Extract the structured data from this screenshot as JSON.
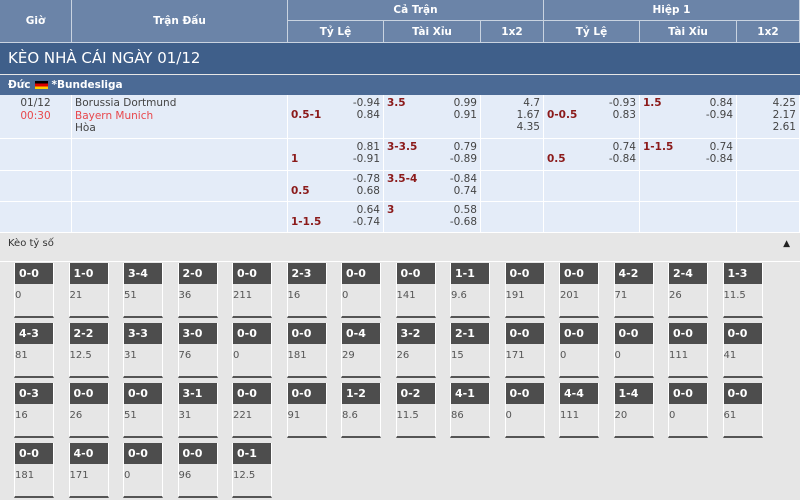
{
  "header": {
    "time": "Giờ",
    "match": "Trận Đấu",
    "full": "Cả Trận",
    "half": "Hiệp 1",
    "handicap": "Tỷ Lệ",
    "ou": "Tài Xỉu",
    "x12": "1x2"
  },
  "title": "KÈO NHÀ CÁI NGÀY 01/12",
  "league": {
    "country": "Đức",
    "name": "*Bundesliga"
  },
  "match": {
    "date": "01/12",
    "time": "00:30",
    "home": "Borussia Dortmund",
    "away": "Bayern Munich",
    "draw": "Hòa"
  },
  "rows": [
    {
      "hdp": "0.5-1",
      "hdp_o": [
        "-0.94",
        "0.84"
      ],
      "ou": "3.5",
      "ou_o": [
        "0.99",
        "0.91"
      ],
      "x12": [
        "4.7",
        "1.67",
        "4.35"
      ],
      "h_hdp": "0-0.5",
      "h_hdp_o": [
        "-0.93",
        "0.83"
      ],
      "h_ou": "1.5",
      "h_ou_o": [
        "0.84",
        "-0.94"
      ],
      "h_x12": [
        "4.25",
        "2.17",
        "2.61"
      ]
    },
    {
      "hdp": "1",
      "hdp_o": [
        "0.81",
        "-0.91"
      ],
      "ou": "3-3.5",
      "ou_o": [
        "0.79",
        "-0.89"
      ],
      "h_hdp": "0.5",
      "h_hdp_o": [
        "0.74",
        "-0.84"
      ],
      "h_ou": "1-1.5",
      "h_ou_o": [
        "0.74",
        "-0.84"
      ]
    },
    {
      "hdp": "0.5",
      "hdp_o": [
        "-0.78",
        "0.68"
      ],
      "ou": "3.5-4",
      "ou_o": [
        "-0.84",
        "0.74"
      ]
    },
    {
      "hdp": "1-1.5",
      "hdp_o": [
        "0.64",
        "-0.74"
      ],
      "ou": "3",
      "ou_o": [
        "0.58",
        "-0.68"
      ]
    }
  ],
  "correct_score": {
    "label": "Kèo tỷ số",
    "collapse_icon": "caret-up-icon",
    "items": [
      [
        "0-0",
        "0"
      ],
      [
        "1-0",
        "21"
      ],
      [
        "3-4",
        "51"
      ],
      [
        "2-0",
        "36"
      ],
      [
        "0-0",
        "211"
      ],
      [
        "2-3",
        "16"
      ],
      [
        "0-0",
        "0"
      ],
      [
        "0-0",
        "141"
      ],
      [
        "1-1",
        "9.6"
      ],
      [
        "0-0",
        "191"
      ],
      [
        "0-0",
        "201"
      ],
      [
        "4-2",
        "71"
      ],
      [
        "2-4",
        "26"
      ],
      [
        "1-3",
        "11.5"
      ],
      [
        "4-3",
        "81"
      ],
      [
        "2-2",
        "12.5"
      ],
      [
        "3-3",
        "31"
      ],
      [
        "3-0",
        "76"
      ],
      [
        "0-0",
        "0"
      ],
      [
        "0-0",
        "181"
      ],
      [
        "0-4",
        "29"
      ],
      [
        "3-2",
        "26"
      ],
      [
        "2-1",
        "15"
      ],
      [
        "0-0",
        "171"
      ],
      [
        "0-0",
        "0"
      ],
      [
        "0-0",
        "0"
      ],
      [
        "0-0",
        "111"
      ],
      [
        "0-0",
        "41"
      ],
      [
        "0-3",
        "16"
      ],
      [
        "0-0",
        "26"
      ],
      [
        "0-0",
        "51"
      ],
      [
        "3-1",
        "31"
      ],
      [
        "0-0",
        "221"
      ],
      [
        "0-0",
        "91"
      ],
      [
        "1-2",
        "8.6"
      ],
      [
        "0-2",
        "11.5"
      ],
      [
        "4-1",
        "86"
      ],
      [
        "0-0",
        "0"
      ],
      [
        "4-4",
        "111"
      ],
      [
        "1-4",
        "20"
      ],
      [
        "0-0",
        "0"
      ],
      [
        "0-0",
        "61"
      ],
      [
        "0-0",
        "181"
      ],
      [
        "4-0",
        "171"
      ],
      [
        "0-0",
        "0"
      ],
      [
        "0-0",
        "96"
      ],
      [
        "0-1",
        "12.5"
      ]
    ]
  }
}
